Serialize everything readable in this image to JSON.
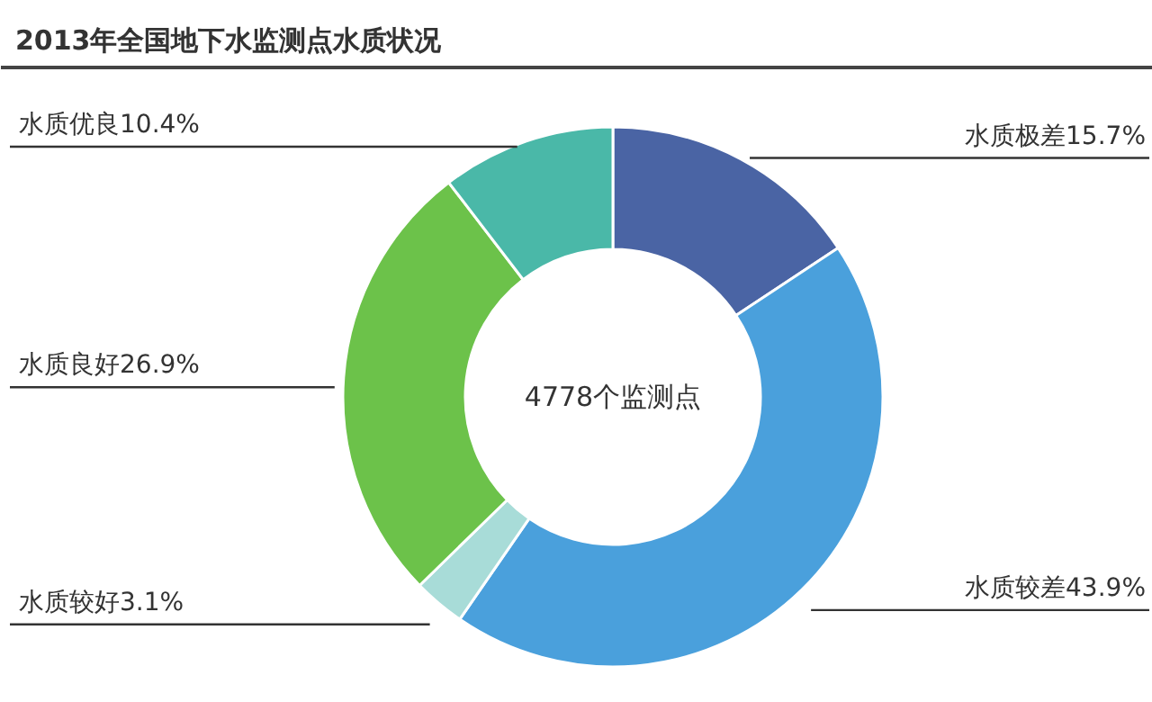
{
  "chart_data": {
    "type": "donut",
    "title": "2013年全国地下水监测点水质状况",
    "categories": [
      "水质极差",
      "水质较差",
      "水质较好",
      "水质良好",
      "水质优良"
    ],
    "values": [
      15.7,
      43.9,
      3.1,
      26.9,
      10.4
    ],
    "colors": [
      "#4a64a4",
      "#4aa0dc",
      "#a8dcd8",
      "#6cc24a",
      "#4ab8a8"
    ],
    "value_labels": [
      "15.7%",
      "43.9%",
      "3.1%",
      "26.9%",
      "10.4%"
    ],
    "annotations": [
      "4778个监测点"
    ]
  }
}
